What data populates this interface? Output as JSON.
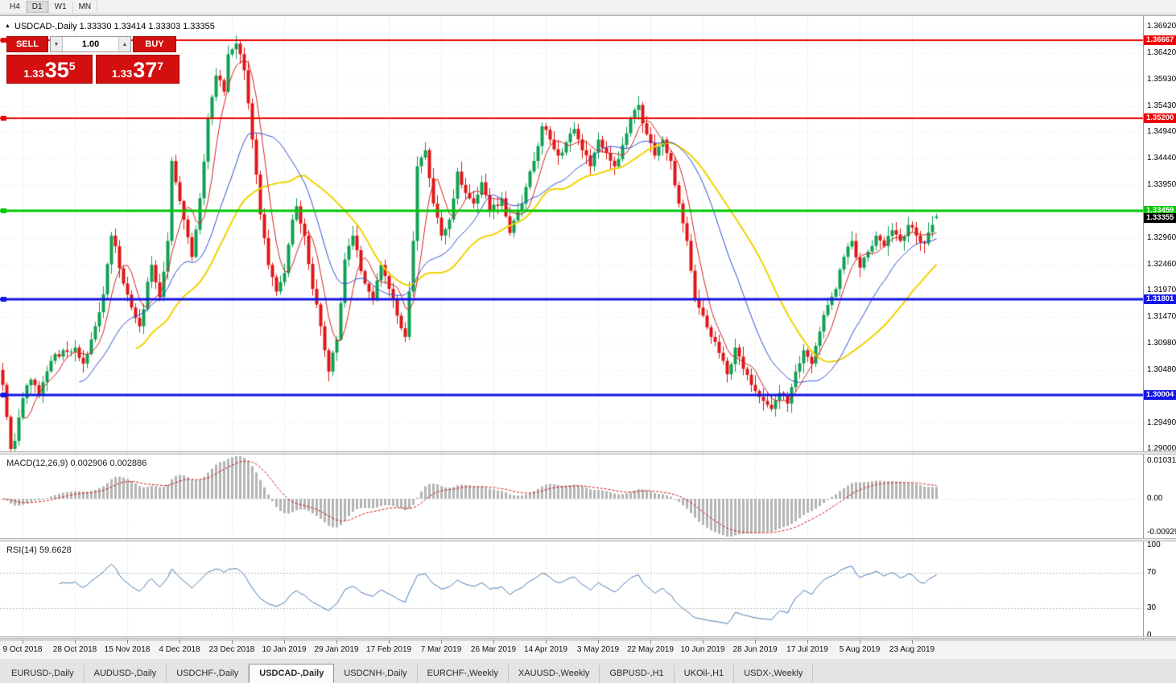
{
  "toolbar": {
    "timeframes": [
      {
        "label": "H4",
        "active": false
      },
      {
        "label": "D1",
        "active": true
      },
      {
        "label": "W1",
        "active": false
      },
      {
        "label": "MN",
        "active": false
      }
    ]
  },
  "chart_header": {
    "collapse_icon_glyph": "▲",
    "title": "USDCAD-,Daily 1.33330 1.33414 1.33303 1.33355"
  },
  "trade_panel": {
    "sell_label": "SELL",
    "buy_label": "BUY",
    "volume": "1.00",
    "volume_down_glyph": "▼",
    "volume_up_glyph": "▲",
    "sell_price": {
      "big": "1.33",
      "mid": "35",
      "sup": "5"
    },
    "buy_price": {
      "big": "1.33",
      "mid": "37",
      "sup": "7"
    },
    "accent_color": "#d40f0f"
  },
  "indicators": {
    "macd_label": "MACD(12,26,9) 0.002906 0.002886",
    "rsi_label": "RSI(14) 59.6628"
  },
  "chart_data": {
    "type": "candlestick",
    "symbol": "USDCAD-",
    "timeframe": "Daily",
    "ohlc_display": {
      "open": "1.33330",
      "high": "1.33414",
      "low": "1.33303",
      "close": "1.33355"
    },
    "bar_count": 233,
    "candle_colors": {
      "bull": "#0fa052",
      "bear": "#e01616"
    },
    "price_axis": {
      "max_value": 1.3692,
      "min_value": 1.29,
      "ticks": [
        {
          "label": "1.36920",
          "value": 1.3692
        },
        {
          "label": "1.36420",
          "value": 1.3642
        },
        {
          "label": "1.35930",
          "value": 1.3593
        },
        {
          "label": "1.35430",
          "value": 1.3543
        },
        {
          "label": "1.34940",
          "value": 1.3494
        },
        {
          "label": "1.34440",
          "value": 1.3444
        },
        {
          "label": "1.33950",
          "value": 1.3395
        },
        {
          "label": "1.32960",
          "value": 1.3296
        },
        {
          "label": "1.32460",
          "value": 1.3246
        },
        {
          "label": "1.31970",
          "value": 1.3197
        },
        {
          "label": "1.31470",
          "value": 1.3147
        },
        {
          "label": "1.30980",
          "value": 1.3098
        },
        {
          "label": "1.30480",
          "value": 1.3048
        },
        {
          "label": "1.29490",
          "value": 1.2949
        },
        {
          "label": "1.29000",
          "value": 1.29
        }
      ]
    },
    "time_axis": {
      "labels": [
        "9 Oct 2018",
        "28 Oct 2018",
        "15 Nov 2018",
        "4 Dec 2018",
        "23 Dec 2018",
        "10 Jan 2019",
        "29 Jan 2019",
        "17 Feb 2019",
        "7 Mar 2019",
        "26 Mar 2019",
        "14 Apr 2019",
        "3 May 2019",
        "22 May 2019",
        "10 Jun 2019",
        "28 Jun 2019",
        "17 Jul 2019",
        "5 Aug 2019",
        "23 Aug 2019"
      ],
      "indices": [
        5,
        18,
        31,
        44,
        57,
        70,
        83,
        96,
        109,
        122,
        135,
        148,
        161,
        174,
        187,
        200,
        213,
        226
      ]
    },
    "hlines": [
      {
        "label": "1.36667",
        "value": 1.36667,
        "color": "#ee0000",
        "width": 2
      },
      {
        "label": "1.35200",
        "value": 1.352,
        "color": "#ee0000",
        "width": 2
      },
      {
        "label": "1.33459",
        "value": 1.33459,
        "color": "#00c800",
        "width": 3
      },
      {
        "label": "1.31801",
        "value": 1.31801,
        "color": "#1414e6",
        "width": 3
      },
      {
        "label": "1.30004",
        "value": 1.30004,
        "color": "#1414e6",
        "width": 3
      }
    ],
    "current_price": {
      "label": "1.33355",
      "value": 1.33355,
      "color": "#000000"
    },
    "last_bar": {
      "open": 1.3333,
      "high": 1.33414,
      "low": 1.33303,
      "close": 1.33355
    },
    "moving_averages": [
      {
        "type": "sma",
        "period": 34,
        "color": "#f2d200",
        "width": 2
      },
      {
        "type": "sma",
        "period": 20,
        "color": "#2e4fd8",
        "width": 1
      },
      {
        "type": "sma",
        "period": 6,
        "color": "#d22424",
        "width": 1
      }
    ],
    "close_anchors": [
      [
        0,
        1.302
      ],
      [
        1,
        1.296
      ],
      [
        2,
        1.29
      ],
      [
        3,
        1.2915
      ],
      [
        5,
        1.2995
      ],
      [
        7,
        1.303
      ],
      [
        9,
        1.3
      ],
      [
        12,
        1.3065
      ],
      [
        15,
        1.3085
      ],
      [
        18,
        1.309
      ],
      [
        20,
        1.306
      ],
      [
        23,
        1.313
      ],
      [
        25,
        1.319
      ],
      [
        27,
        1.33
      ],
      [
        28,
        1.328
      ],
      [
        30,
        1.321
      ],
      [
        32,
        1.3165
      ],
      [
        34,
        1.313
      ],
      [
        37,
        1.3245
      ],
      [
        39,
        1.3185
      ],
      [
        41,
        1.329
      ],
      [
        42,
        1.344
      ],
      [
        43,
        1.34
      ],
      [
        45,
        1.333
      ],
      [
        47,
        1.326
      ],
      [
        49,
        1.337
      ],
      [
        51,
        1.352
      ],
      [
        52,
        1.356
      ],
      [
        53,
        1.36
      ],
      [
        55,
        1.357
      ],
      [
        56,
        1.364
      ],
      [
        58,
        1.366
      ],
      [
        60,
        1.361
      ],
      [
        62,
        1.348
      ],
      [
        64,
        1.334
      ],
      [
        66,
        1.3245
      ],
      [
        68,
        1.3195
      ],
      [
        70,
        1.323
      ],
      [
        72,
        1.333
      ],
      [
        73,
        1.3355
      ],
      [
        75,
        1.33
      ],
      [
        77,
        1.32
      ],
      [
        79,
        1.313
      ],
      [
        81,
        1.3045
      ],
      [
        83,
        1.3105
      ],
      [
        85,
        1.3255
      ],
      [
        87,
        1.33
      ],
      [
        90,
        1.321
      ],
      [
        92,
        1.318
      ],
      [
        94,
        1.3245
      ],
      [
        96,
        1.32
      ],
      [
        98,
        1.315
      ],
      [
        100,
        1.311
      ],
      [
        102,
        1.329
      ],
      [
        103,
        1.343
      ],
      [
        105,
        1.346
      ],
      [
        107,
        1.336
      ],
      [
        109,
        1.33
      ],
      [
        111,
        1.333
      ],
      [
        113,
        1.342
      ],
      [
        115,
        1.338
      ],
      [
        117,
        1.336
      ],
      [
        119,
        1.34
      ],
      [
        121,
        1.3345
      ],
      [
        124,
        1.337
      ],
      [
        126,
        1.3305
      ],
      [
        129,
        1.336
      ],
      [
        132,
        1.344
      ],
      [
        134,
        1.3505
      ],
      [
        136,
        1.348
      ],
      [
        138,
        1.345
      ],
      [
        140,
        1.3475
      ],
      [
        142,
        1.35
      ],
      [
        144,
        1.346
      ],
      [
        146,
        1.343
      ],
      [
        148,
        1.348
      ],
      [
        150,
        1.3455
      ],
      [
        152,
        1.343
      ],
      [
        154,
        1.347
      ],
      [
        156,
        1.352
      ],
      [
        158,
        1.3545
      ],
      [
        160,
        1.349
      ],
      [
        162,
        1.345
      ],
      [
        164,
        1.348
      ],
      [
        166,
        1.344
      ],
      [
        168,
        1.336
      ],
      [
        170,
        1.329
      ],
      [
        172,
        1.318
      ],
      [
        174,
        1.315
      ],
      [
        176,
        1.311
      ],
      [
        178,
        1.308
      ],
      [
        180,
        1.304
      ],
      [
        182,
        1.309
      ],
      [
        184,
        1.305
      ],
      [
        186,
        1.302
      ],
      [
        189,
        1.299
      ],
      [
        191,
        1.2975
      ],
      [
        193,
        1.3005
      ],
      [
        195,
        1.2985
      ],
      [
        197,
        1.3045
      ],
      [
        199,
        1.3085
      ],
      [
        201,
        1.306
      ],
      [
        203,
        1.312
      ],
      [
        205,
        1.317
      ],
      [
        207,
        1.32
      ],
      [
        209,
        1.326
      ],
      [
        211,
        1.329
      ],
      [
        213,
        1.324
      ],
      [
        215,
        1.327
      ],
      [
        217,
        1.33
      ],
      [
        219,
        1.328
      ],
      [
        221,
        1.331
      ],
      [
        223,
        1.329
      ],
      [
        225,
        1.332
      ],
      [
        227,
        1.33
      ],
      [
        229,
        1.3285
      ],
      [
        231,
        1.332
      ],
      [
        232,
        1.33355
      ]
    ],
    "macd": {
      "params": "12,26,9",
      "value_text": "0.002906",
      "signal_text": "0.002886",
      "histogram_color": "#b4b4b4",
      "signal_color": "#cc1111",
      "axis_ticks": [
        {
          "label": "0.010311",
          "value": 0.010311
        },
        {
          "label": "0.00",
          "value": 0
        },
        {
          "label": "-0.009293",
          "value": -0.009293
        }
      ]
    },
    "rsi": {
      "period": 14,
      "value_text": "59.6628",
      "line_color": "#4579b2",
      "levels": [
        {
          "label": "100",
          "value": 100,
          "line": false
        },
        {
          "label": "70",
          "value": 70,
          "line": true
        },
        {
          "label": "30",
          "value": 30,
          "line": true
        },
        {
          "label": "0",
          "value": 0,
          "line": false
        }
      ]
    }
  },
  "tabs": [
    {
      "label": "EURUSD-,Daily",
      "active": false
    },
    {
      "label": "AUDUSD-,Daily",
      "active": false
    },
    {
      "label": "USDCHF-,Daily",
      "active": false
    },
    {
      "label": "USDCAD-,Daily",
      "active": true
    },
    {
      "label": "USDCNH-,Daily",
      "active": false
    },
    {
      "label": "EURCHF-,Weekly",
      "active": false
    },
    {
      "label": "XAUUSD-,Weekly",
      "active": false
    },
    {
      "label": "GBPUSD-,H1",
      "active": false
    },
    {
      "label": "UKOil-,H1",
      "active": false
    },
    {
      "label": "USDX-,Weekly",
      "active": false
    }
  ]
}
